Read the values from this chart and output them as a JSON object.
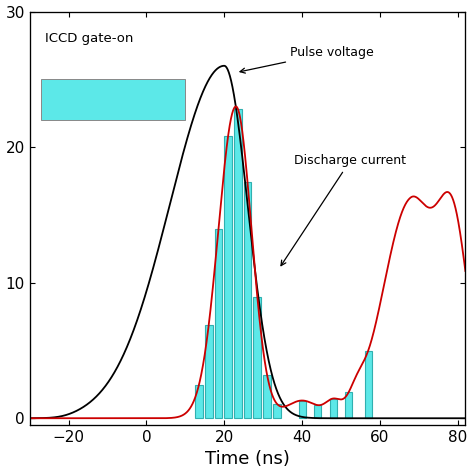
{
  "xlabel": "Time (ns)",
  "xlim": [
    -30,
    82
  ],
  "ylim_left": [
    -0.5,
    30
  ],
  "xticks": [
    -20,
    0,
    20,
    40,
    60,
    80
  ],
  "yticks_left": [
    0,
    10,
    20,
    30
  ],
  "bar_color": "#5CE8E8",
  "bar_edge_color": "#30B0B0",
  "pulse_voltage_color": "#000000",
  "discharge_current_color": "#CC0000",
  "annotation_pulse_voltage": "Pulse voltage",
  "annotation_discharge_current": "Discharge current",
  "annotation_iccd": "ICCD gate-on",
  "figsize": [
    4.74,
    4.74
  ],
  "dpi": 100
}
